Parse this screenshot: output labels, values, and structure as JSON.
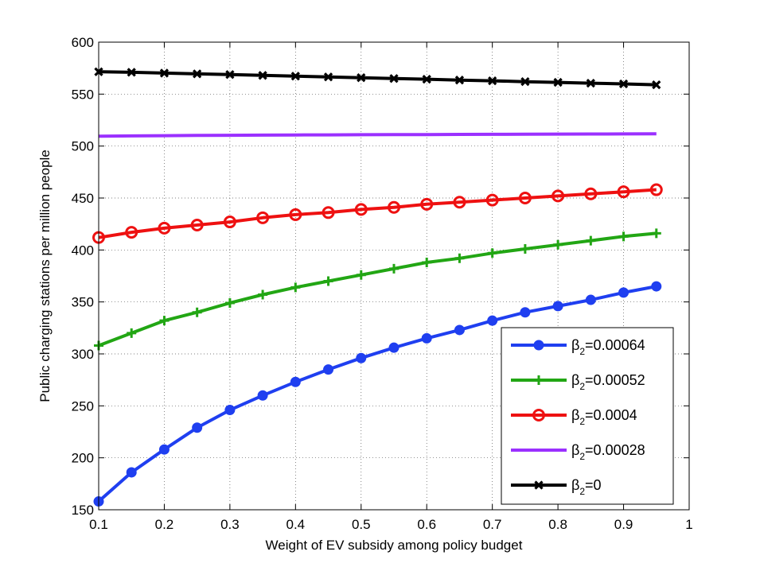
{
  "chart_data": {
    "type": "line",
    "xlabel": "Weight of EV subsidy among policy budget",
    "ylabel": "Public charging stations per million people",
    "xlim": [
      0.1,
      1
    ],
    "ylim": [
      150,
      600
    ],
    "xticks": [
      "0.1",
      "0.2",
      "0.3",
      "0.4",
      "0.5",
      "0.6",
      "0.7",
      "0.8",
      "0.9",
      "1"
    ],
    "yticks": [
      "150",
      "200",
      "250",
      "300",
      "350",
      "400",
      "450",
      "500",
      "550",
      "600"
    ],
    "grid": "dotted",
    "legend_position": "bottom-right",
    "x": [
      0.1,
      0.15,
      0.2,
      0.25,
      0.3,
      0.35,
      0.4,
      0.45,
      0.5,
      0.55,
      0.6,
      0.65,
      0.7,
      0.75,
      0.8,
      0.85,
      0.9,
      0.95
    ],
    "series": [
      {
        "name": "β2=0.00064",
        "legend_prefix": "β",
        "legend_sub": "2",
        "legend_value": "=0.00064",
        "color": "#1f3ff0",
        "marker": "filled-circle",
        "values": [
          158,
          186,
          208,
          229,
          246,
          260,
          273,
          285,
          296,
          306,
          315,
          323,
          332,
          340,
          346,
          352,
          359,
          365
        ]
      },
      {
        "name": "β2=0.00052",
        "legend_prefix": "β",
        "legend_sub": "2",
        "legend_value": "=0.00052",
        "color": "#22a614",
        "marker": "plus",
        "values": [
          308,
          320,
          332,
          340,
          349,
          357,
          364,
          370,
          376,
          382,
          388,
          392,
          397,
          401,
          405,
          409,
          413,
          416
        ]
      },
      {
        "name": "β2=0.0004",
        "legend_prefix": "β",
        "legend_sub": "2",
        "legend_value": "=0.0004",
        "color": "#ee1111",
        "marker": "open-circle",
        "values": [
          412,
          417,
          421,
          424,
          427,
          431,
          434,
          436,
          439,
          441,
          444,
          446,
          448,
          450,
          452,
          454,
          456,
          458
        ]
      },
      {
        "name": "β2=0.00028",
        "legend_prefix": "β",
        "legend_sub": "2",
        "legend_value": "=0.00028",
        "color": "#9b30ff",
        "marker": "none",
        "values": [
          509.5,
          509.8,
          510.0,
          510.2,
          510.4,
          510.5,
          510.7,
          510.8,
          510.9,
          511.0,
          511.1,
          511.2,
          511.3,
          511.4,
          511.5,
          511.6,
          511.7,
          511.8
        ]
      },
      {
        "name": "β2=0",
        "legend_prefix": "β",
        "legend_sub": "2",
        "legend_value": "=0",
        "color": "#000000",
        "marker": "x-mark",
        "values": [
          571.5,
          571,
          570.2,
          569.5,
          568.8,
          568,
          567.3,
          566.5,
          565.8,
          565,
          564.3,
          563.5,
          562.8,
          562,
          561.3,
          560.5,
          559.8,
          559
        ]
      }
    ]
  }
}
